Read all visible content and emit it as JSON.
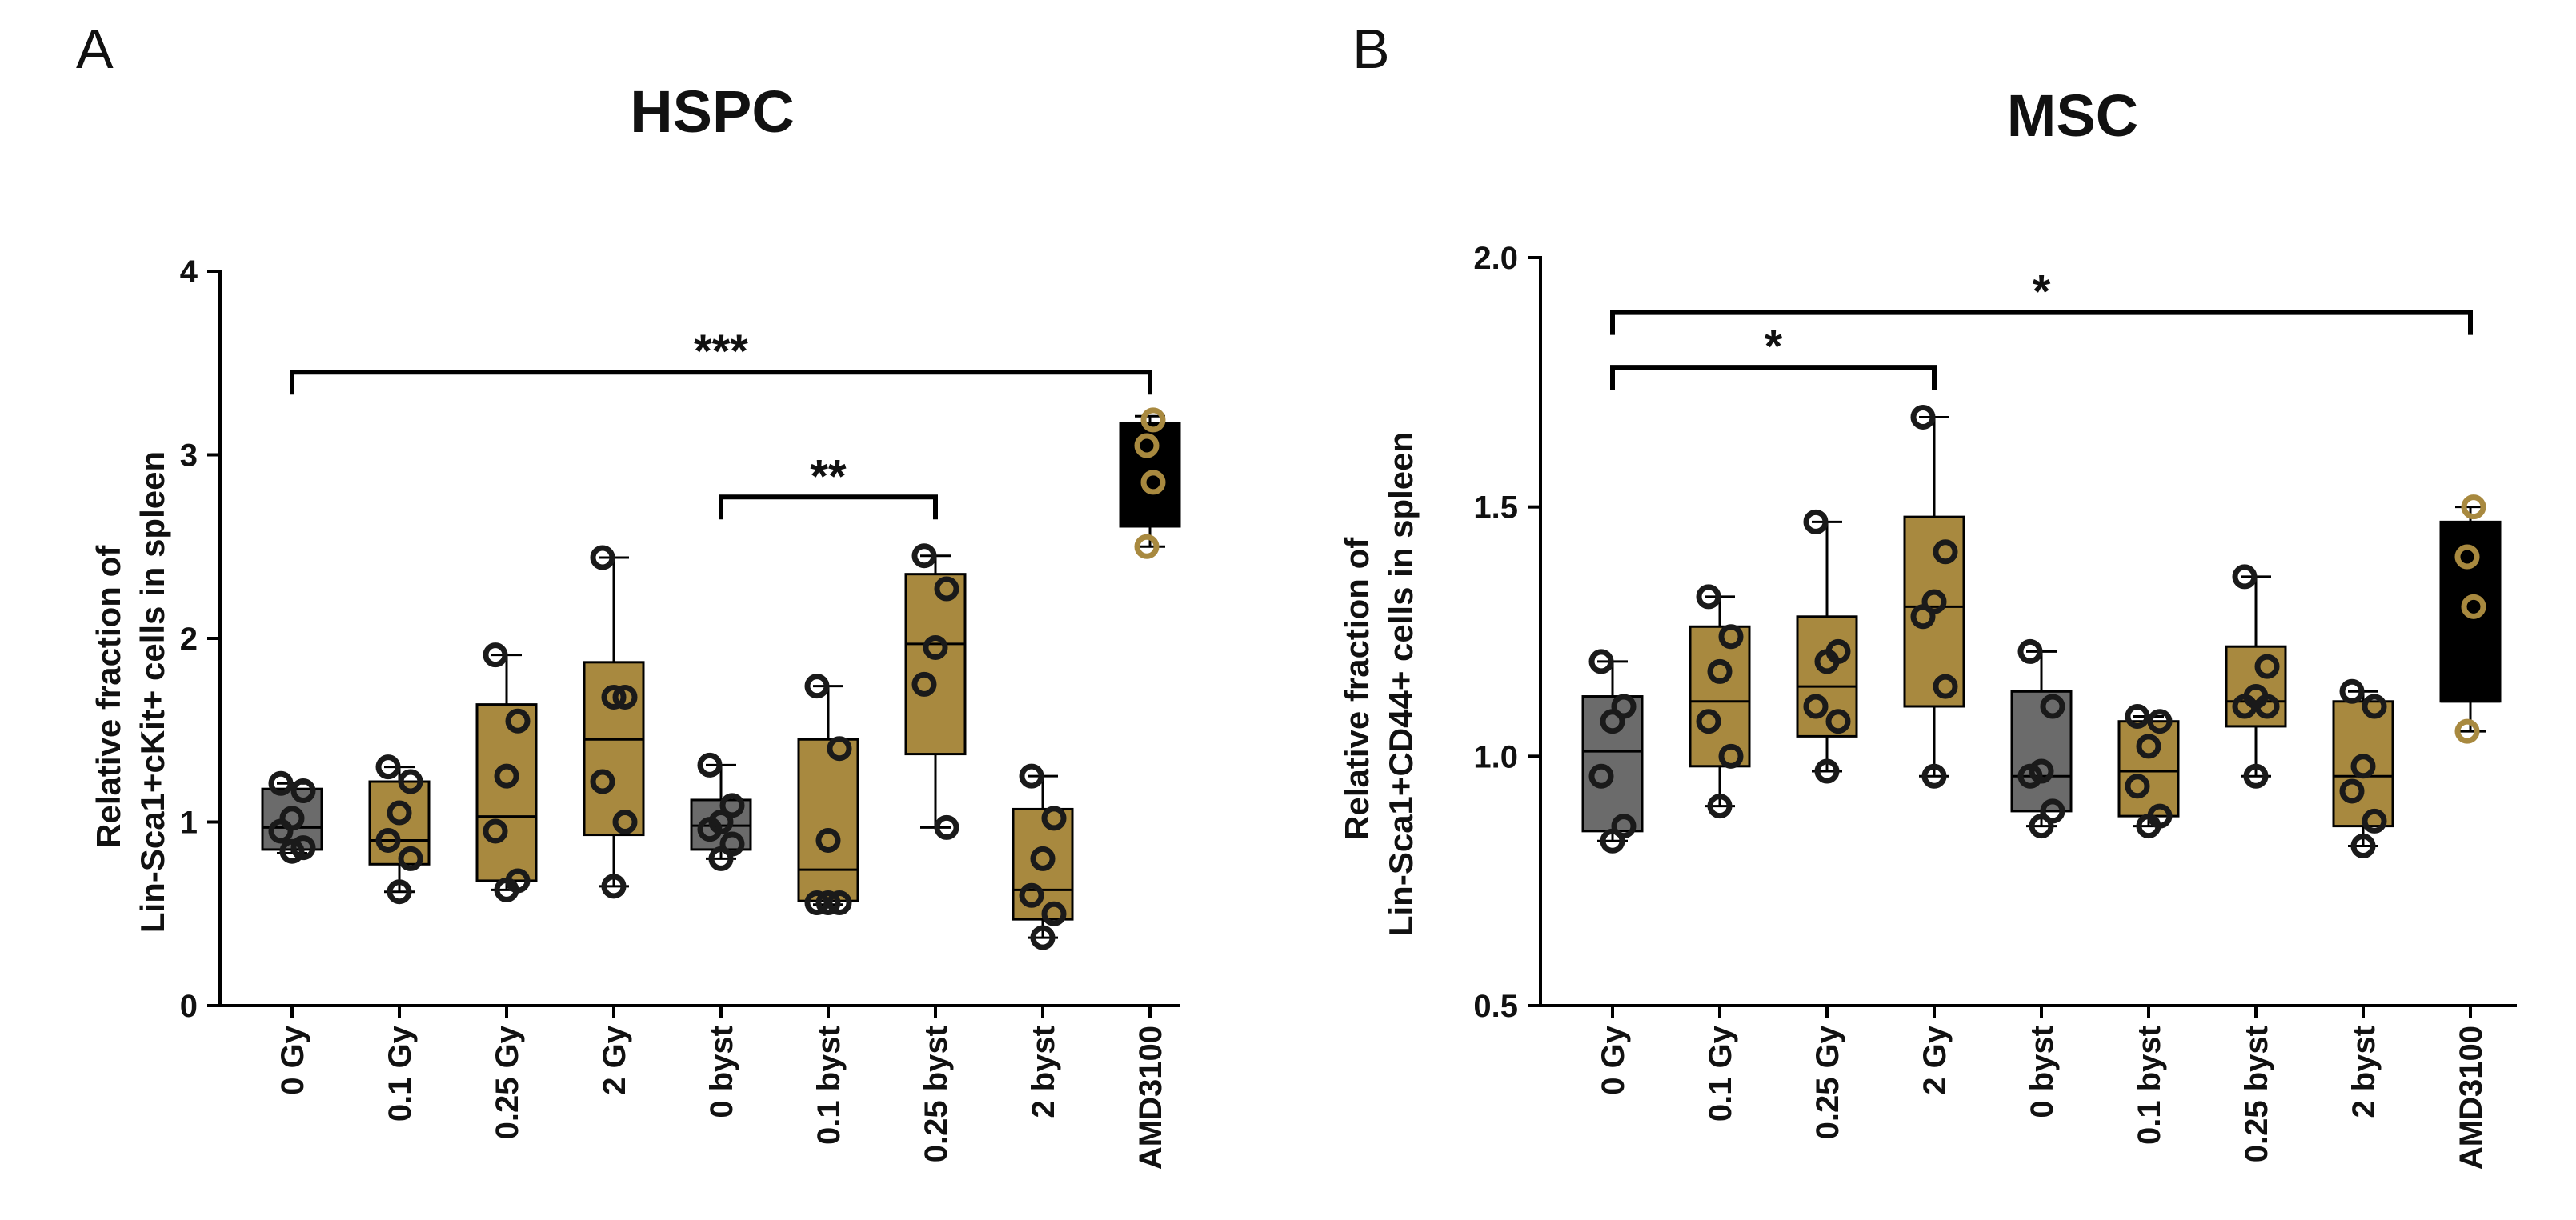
{
  "colors": {
    "gray": "#6b6b6b",
    "olive": "#a8893f",
    "black": "#000000",
    "point_dark": "#1a1a1a",
    "point_light": "#a8893f"
  },
  "chart_data": [
    {
      "type": "box",
      "panel_letter": "A",
      "title": "HSPC",
      "ylabel_lines": [
        "Relative fraction of",
        "Lin-Sca1+cKit+ cells in spleen"
      ],
      "xlabel": "",
      "ylim": [
        0,
        4
      ],
      "yticks": [
        0,
        1,
        2,
        3,
        4
      ],
      "ytick_labels": [
        "0",
        "1",
        "2",
        "3",
        "4"
      ],
      "categories": [
        "0 Gy",
        "0.1 Gy",
        "0.25 Gy",
        "2 Gy",
        "0 byst",
        "0.1 byst",
        "0.25 byst",
        "2 byst",
        "AMD3100"
      ],
      "boxes": [
        {
          "fill": "gray",
          "min": 0.83,
          "q1": 0.85,
          "median": 0.97,
          "q3": 1.18,
          "max": 1.21,
          "points": [
            1.21,
            1.17,
            1.02,
            0.95,
            0.86,
            0.84
          ],
          "point_color": "point_dark"
        },
        {
          "fill": "olive",
          "min": 0.62,
          "q1": 0.77,
          "median": 0.9,
          "q3": 1.22,
          "max": 1.3,
          "points": [
            1.3,
            1.22,
            1.05,
            0.9,
            0.8,
            0.62
          ],
          "point_color": "point_dark"
        },
        {
          "fill": "olive",
          "min": 0.63,
          "q1": 0.68,
          "median": 1.03,
          "q3": 1.64,
          "max": 1.91,
          "points": [
            1.91,
            1.55,
            1.25,
            0.95,
            0.68,
            0.63
          ],
          "point_color": "point_dark"
        },
        {
          "fill": "olive",
          "min": 0.65,
          "q1": 0.93,
          "median": 1.45,
          "q3": 1.87,
          "max": 2.44,
          "points": [
            2.44,
            1.68,
            1.68,
            1.22,
            1.0,
            0.65
          ],
          "point_color": "point_dark"
        },
        {
          "fill": "gray",
          "min": 0.8,
          "q1": 0.85,
          "median": 0.98,
          "q3": 1.12,
          "max": 1.31,
          "points": [
            1.31,
            1.09,
            1.0,
            0.96,
            0.88,
            0.8
          ],
          "point_color": "point_dark"
        },
        {
          "fill": "olive",
          "min": 0.55,
          "q1": 0.57,
          "median": 0.74,
          "q3": 1.45,
          "max": 1.74,
          "points": [
            1.74,
            1.4,
            0.9,
            0.56,
            0.56,
            0.56
          ],
          "point_color": "point_dark"
        },
        {
          "fill": "olive",
          "min": 0.97,
          "q1": 1.37,
          "median": 1.97,
          "q3": 2.35,
          "max": 2.45,
          "points": [
            2.45,
            2.27,
            1.95,
            1.75,
            0.97
          ],
          "point_color": "point_dark"
        },
        {
          "fill": "olive",
          "min": 0.37,
          "q1": 0.47,
          "median": 0.63,
          "q3": 1.07,
          "max": 1.25,
          "points": [
            1.25,
            1.02,
            0.8,
            0.6,
            0.5,
            0.37
          ],
          "point_color": "point_dark"
        },
        {
          "fill": "black",
          "min": 2.5,
          "q1": 2.61,
          "median": 2.61,
          "q3": 3.17,
          "max": 3.21,
          "points": [
            3.19,
            3.05,
            2.85,
            2.5
          ],
          "point_color": "point_light"
        }
      ],
      "significance": [
        {
          "from": 0,
          "to": 8,
          "y": 3.45,
          "label": "***"
        },
        {
          "from": 4,
          "to": 6,
          "y": 2.77,
          "label": "**"
        }
      ]
    },
    {
      "type": "box",
      "panel_letter": "B",
      "title": "MSC",
      "ylabel_lines": [
        "Relative fraction of",
        "Lin-Sca1+CD44+ cells in spleen"
      ],
      "xlabel": "",
      "ylim": [
        0.5,
        2.0
      ],
      "yticks": [
        0.5,
        1.0,
        1.5,
        2.0
      ],
      "ytick_labels": [
        "0.5",
        "1.0",
        "1.5",
        "2.0"
      ],
      "categories": [
        "0 Gy",
        "0.1 Gy",
        "0.25 Gy",
        "2 Gy",
        "0 byst",
        "0.1 byst",
        "0.25 byst",
        "2 byst",
        "AMD3100"
      ],
      "boxes": [
        {
          "fill": "gray",
          "min": 0.83,
          "q1": 0.85,
          "median": 1.01,
          "q3": 1.12,
          "max": 1.19,
          "points": [
            1.19,
            1.1,
            1.07,
            0.96,
            0.86,
            0.83
          ],
          "point_color": "point_dark"
        },
        {
          "fill": "olive",
          "min": 0.9,
          "q1": 0.98,
          "median": 1.11,
          "q3": 1.26,
          "max": 1.32,
          "points": [
            1.32,
            1.24,
            1.17,
            1.07,
            1.0,
            0.9
          ],
          "point_color": "point_dark"
        },
        {
          "fill": "olive",
          "min": 0.97,
          "q1": 1.04,
          "median": 1.14,
          "q3": 1.28,
          "max": 1.47,
          "points": [
            1.47,
            1.21,
            1.19,
            1.1,
            1.07,
            0.97
          ],
          "point_color": "point_dark"
        },
        {
          "fill": "olive",
          "min": 0.96,
          "q1": 1.1,
          "median": 1.3,
          "q3": 1.48,
          "max": 1.68,
          "points": [
            1.68,
            1.41,
            1.31,
            1.28,
            1.14,
            0.96
          ],
          "point_color": "point_dark"
        },
        {
          "fill": "gray",
          "min": 0.86,
          "q1": 0.89,
          "median": 0.96,
          "q3": 1.13,
          "max": 1.21,
          "points": [
            1.21,
            1.1,
            0.97,
            0.96,
            0.89,
            0.86
          ],
          "point_color": "point_dark"
        },
        {
          "fill": "olive",
          "min": 0.86,
          "q1": 0.88,
          "median": 0.97,
          "q3": 1.07,
          "max": 1.08,
          "points": [
            1.08,
            1.07,
            1.02,
            0.94,
            0.88,
            0.86
          ],
          "point_color": "point_dark"
        },
        {
          "fill": "olive",
          "min": 0.96,
          "q1": 1.06,
          "median": 1.11,
          "q3": 1.22,
          "max": 1.36,
          "points": [
            1.36,
            1.18,
            1.12,
            1.1,
            1.1,
            0.96
          ],
          "point_color": "point_dark"
        },
        {
          "fill": "olive",
          "min": 0.82,
          "q1": 0.86,
          "median": 0.96,
          "q3": 1.11,
          "max": 1.13,
          "points": [
            1.13,
            1.1,
            0.98,
            0.93,
            0.87,
            0.82
          ],
          "point_color": "point_dark"
        },
        {
          "fill": "black",
          "min": 1.05,
          "q1": 1.11,
          "median": 1.11,
          "q3": 1.47,
          "max": 1.5,
          "points": [
            1.5,
            1.4,
            1.3,
            1.05
          ],
          "point_color": "point_light"
        }
      ],
      "significance": [
        {
          "from": 0,
          "to": 8,
          "y": 1.89,
          "label": "*"
        },
        {
          "from": 0,
          "to": 3,
          "y": 1.78,
          "label": "*"
        }
      ]
    }
  ]
}
